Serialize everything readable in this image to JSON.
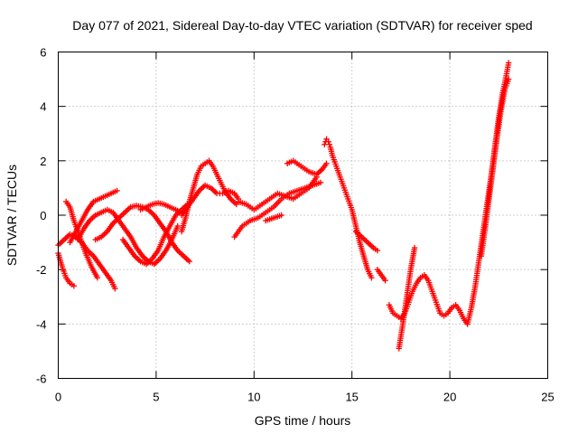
{
  "chart_data": {
    "type": "scatter",
    "title": "Day 077 of 2021, Sidereal Day-to-day VTEC variation (SDTVAR) for receiver sped",
    "xlabel": "GPS time / hours",
    "ylabel": "SDTVAR / TECUs",
    "xlim": [
      0,
      25
    ],
    "ylim": [
      -6,
      6
    ],
    "xticks": [
      0,
      5,
      10,
      15,
      20,
      25
    ],
    "yticks": [
      -6,
      -4,
      -2,
      0,
      2,
      4,
      6
    ],
    "xtick_labels": [
      "0",
      "5",
      "10",
      "15",
      "20",
      "25"
    ],
    "ytick_labels": [
      "-6",
      "-4",
      "-2",
      "0",
      "2",
      "4",
      "6"
    ],
    "grid": true,
    "marker": "+",
    "color": "#ff0000",
    "series": [
      {
        "x": [
          0.0,
          0.2,
          0.4,
          0.6,
          0.8
        ],
        "y": [
          -1.4,
          -1.9,
          -2.3,
          -2.5,
          -2.6
        ]
      },
      {
        "x": [
          0.0,
          0.3,
          0.6,
          0.9,
          1.2,
          1.5,
          1.8,
          2.1,
          2.4,
          2.7,
          2.9
        ],
        "y": [
          -1.1,
          -0.9,
          -0.7,
          -0.8,
          -1.0,
          -1.3,
          -1.5,
          -1.8,
          -2.1,
          -2.4,
          -2.7
        ]
      },
      {
        "x": [
          0.4,
          0.6,
          0.8,
          1.1,
          1.4,
          1.7,
          2.0
        ],
        "y": [
          0.5,
          0.3,
          -0.2,
          -0.8,
          -1.4,
          -1.9,
          -2.3
        ]
      },
      {
        "x": [
          0.6,
          0.9,
          1.2,
          1.5,
          1.8,
          2.1,
          2.4,
          2.7,
          3.0
        ],
        "y": [
          -1.0,
          -0.6,
          -0.2,
          0.2,
          0.5,
          0.6,
          0.7,
          0.8,
          0.9
        ]
      },
      {
        "x": [
          1.0,
          1.3,
          1.6,
          1.9,
          2.2,
          2.5,
          2.8,
          3.1,
          3.4,
          3.7,
          4.0,
          4.3,
          4.6,
          4.9,
          5.2,
          5.5,
          5.8,
          6.1
        ],
        "y": [
          -0.9,
          -0.5,
          -0.2,
          0.0,
          0.1,
          0.2,
          0.1,
          -0.2,
          -0.5,
          -0.8,
          -1.2,
          -1.5,
          -1.7,
          -1.8,
          -1.6,
          -1.3,
          -0.9,
          -0.4
        ]
      },
      {
        "x": [
          1.9,
          2.2,
          2.5,
          2.8,
          3.1,
          3.4,
          3.7,
          4.0,
          4.3,
          4.6,
          4.9,
          5.2,
          5.5,
          5.8,
          6.1,
          6.4,
          6.7
        ],
        "y": [
          -0.9,
          -0.8,
          -0.6,
          -0.3,
          -0.1,
          0.1,
          0.3,
          0.35,
          0.3,
          0.2,
          0.0,
          -0.3,
          -0.6,
          -1.0,
          -1.3,
          -1.5,
          -1.7
        ]
      },
      {
        "x": [
          3.3,
          3.6,
          3.9,
          4.2,
          4.5,
          4.8,
          5.1,
          5.4,
          5.7,
          6.0,
          6.3,
          6.6
        ],
        "y": [
          -0.9,
          -1.2,
          -1.5,
          -1.7,
          -1.8,
          -1.6,
          -1.3,
          -0.8,
          -0.4,
          0.0,
          0.2,
          0.4
        ]
      },
      {
        "x": [
          4.2,
          4.5,
          4.8,
          5.1,
          5.4,
          5.7,
          6.0,
          6.3
        ],
        "y": [
          0.2,
          0.3,
          0.4,
          0.45,
          0.4,
          0.3,
          0.2,
          0.1
        ]
      },
      {
        "x": [
          6.3,
          6.5,
          6.7,
          6.9,
          7.1,
          7.3,
          7.5,
          7.7,
          7.9,
          8.1,
          8.3,
          8.5,
          8.8,
          9.1
        ],
        "y": [
          -0.6,
          -0.1,
          0.5,
          1.0,
          1.5,
          1.8,
          1.9,
          2.0,
          1.8,
          1.5,
          1.2,
          0.9,
          0.6,
          0.4
        ]
      },
      {
        "x": [
          6.3,
          6.6,
          6.9,
          7.2,
          7.5,
          7.8,
          8.1,
          8.4,
          8.7,
          9.0,
          9.2
        ],
        "y": [
          0.0,
          0.3,
          0.6,
          0.9,
          1.1,
          1.0,
          0.8,
          0.8,
          0.9,
          0.8,
          0.6
        ]
      },
      {
        "x": [
          9.0,
          9.4,
          9.8,
          10.2,
          10.6,
          11.0,
          11.4,
          11.8,
          12.2,
          12.6,
          13.0,
          13.4
        ],
        "y": [
          -0.8,
          -0.4,
          -0.2,
          -0.1,
          0.1,
          0.3,
          0.6,
          0.8,
          0.9,
          1.0,
          1.1,
          1.2
        ]
      },
      {
        "x": [
          9.2,
          9.6,
          10.0,
          10.4,
          10.8,
          11.2,
          11.6,
          12.0,
          12.4,
          12.8,
          13.2
        ],
        "y": [
          0.5,
          0.4,
          0.2,
          0.4,
          0.6,
          0.8,
          0.7,
          0.6,
          0.8,
          1.0,
          1.4
        ]
      },
      {
        "x": [
          10.6,
          11.0,
          11.4
        ],
        "y": [
          -0.2,
          -0.1,
          0.0
        ]
      },
      {
        "x": [
          11.7,
          12.0,
          12.4,
          12.8,
          13.2,
          13.5,
          13.7
        ],
        "y": [
          1.9,
          2.0,
          1.8,
          1.6,
          1.5,
          1.7,
          1.9
        ]
      },
      {
        "x": [
          13.6,
          13.7,
          13.8,
          13.9,
          14.0,
          14.2,
          14.4,
          14.6,
          14.8,
          15.0,
          15.2,
          15.4,
          15.6,
          15.8,
          16.0
        ],
        "y": [
          2.6,
          2.8,
          2.7,
          2.5,
          2.2,
          1.8,
          1.4,
          1.0,
          0.6,
          0.2,
          -0.4,
          -1.0,
          -1.5,
          -2.0,
          -2.3
        ]
      },
      {
        "x": [
          15.2,
          15.5,
          15.8,
          16.1,
          16.3
        ],
        "y": [
          -0.6,
          -0.8,
          -1.0,
          -1.2,
          -1.3
        ]
      },
      {
        "x": [
          16.3,
          16.5,
          16.7
        ],
        "y": [
          -2.0,
          -2.2,
          -2.4
        ]
      },
      {
        "x": [
          16.9,
          17.1,
          17.3,
          17.5,
          17.7,
          17.9,
          18.1,
          18.3,
          18.5,
          18.7,
          18.9,
          19.1,
          19.3,
          19.5,
          19.7,
          19.9,
          20.1,
          20.3,
          20.5,
          20.7,
          20.9
        ],
        "y": [
          -3.3,
          -3.6,
          -3.7,
          -3.8,
          -3.6,
          -3.2,
          -2.8,
          -2.5,
          -2.3,
          -2.2,
          -2.4,
          -2.8,
          -3.2,
          -3.6,
          -3.7,
          -3.6,
          -3.4,
          -3.3,
          -3.5,
          -3.8,
          -4.0
        ]
      },
      {
        "x": [
          17.4,
          17.6,
          17.8,
          18.0,
          18.2
        ],
        "y": [
          -4.9,
          -4.0,
          -3.0,
          -2.0,
          -1.2
        ]
      },
      {
        "x": [
          20.9,
          21.1,
          21.3,
          21.5,
          21.7,
          21.9,
          22.1,
          22.3,
          22.5,
          22.7,
          22.9,
          23.0
        ],
        "y": [
          -4.0,
          -3.4,
          -2.6,
          -1.6,
          -0.6,
          0.4,
          1.4,
          2.5,
          3.6,
          4.5,
          5.2,
          5.6
        ]
      },
      {
        "x": [
          21.6,
          21.8,
          22.0,
          22.2,
          22.4,
          22.6,
          22.8,
          23.0
        ],
        "y": [
          -1.5,
          -0.5,
          0.6,
          1.7,
          2.8,
          3.8,
          4.6,
          5.0
        ]
      }
    ]
  }
}
